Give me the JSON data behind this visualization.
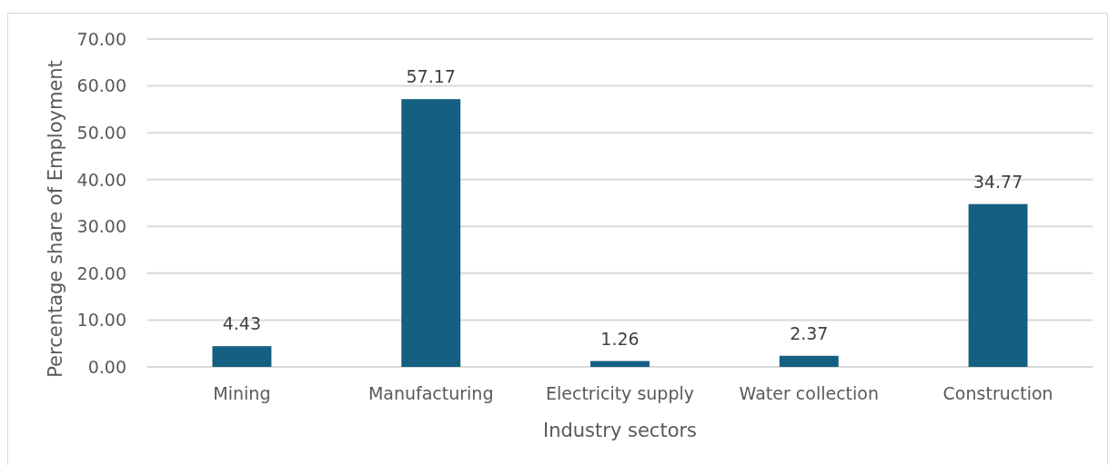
{
  "chart_data": {
    "type": "bar",
    "xlabel": "Industry sectors",
    "ylabel": "Percentage share of Employment",
    "categories": [
      "Mining",
      "Manufacturing",
      "Electricity supply",
      "Water collection",
      "Construction"
    ],
    "values": [
      4.43,
      57.17,
      1.26,
      2.37,
      34.77
    ],
    "color": "#156082",
    "ylim": [
      0,
      70
    ],
    "yticks": [
      {
        "value": 0,
        "label": "0.00"
      },
      {
        "value": 10,
        "label": "10.00"
      },
      {
        "value": 20,
        "label": "20.00"
      },
      {
        "value": 30,
        "label": "30.00"
      },
      {
        "value": 40,
        "label": "40.00"
      },
      {
        "value": 50,
        "label": "50.00"
      },
      {
        "value": 60,
        "label": "60.00"
      },
      {
        "value": 70,
        "label": "70.00"
      }
    ],
    "grid": "y",
    "data_labels": true
  }
}
